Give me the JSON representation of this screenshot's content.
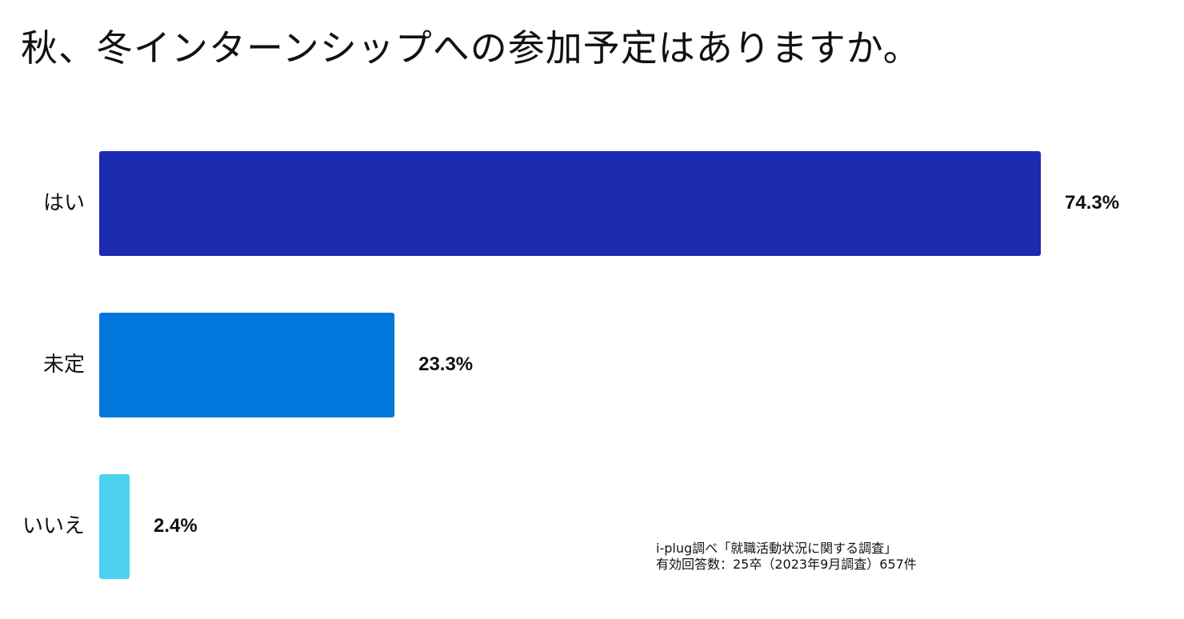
{
  "chart_data": {
    "type": "bar",
    "orientation": "horizontal",
    "title": "秋、冬インターンシップへの参加予定はありますか。",
    "categories": [
      "はい",
      "未定",
      "いいえ"
    ],
    "values": [
      74.3,
      23.3,
      2.4
    ],
    "value_labels": [
      "74.3%",
      "23.3%",
      "2.4%"
    ],
    "colors": [
      "#1B2AAF",
      "#0277DB",
      "#4DD3F1"
    ],
    "xlim": [
      0,
      74.3
    ],
    "grid": false,
    "xlabel": "",
    "ylabel": ""
  },
  "source": {
    "line1": "i-plug調べ「就職活動状況に関する調査」",
    "line2": "有効回答数：25卒（2023年9月調査）657件"
  }
}
